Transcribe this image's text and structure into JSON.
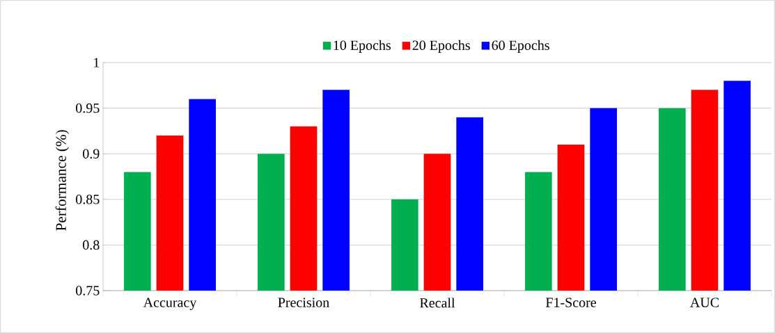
{
  "chart_data": {
    "type": "bar",
    "ylabel": "Performance (%)",
    "categories": [
      "Accuracy",
      "Precision",
      "Recall",
      "F1-Score",
      "AUC"
    ],
    "series": [
      {
        "name": "10 Epochs",
        "color": "#00b050",
        "values": [
          0.88,
          0.9,
          0.85,
          0.88,
          0.95
        ]
      },
      {
        "name": "20 Epochs",
        "color": "#ff0000",
        "values": [
          0.92,
          0.93,
          0.9,
          0.91,
          0.97
        ]
      },
      {
        "name": "60 Epochs",
        "color": "#0000ff",
        "values": [
          0.96,
          0.97,
          0.94,
          0.95,
          0.98
        ]
      }
    ],
    "ylim": [
      0.75,
      1
    ],
    "yticks": [
      0.75,
      0.8,
      0.85,
      0.9,
      0.95,
      1
    ],
    "grid": "y",
    "legend": "top"
  }
}
